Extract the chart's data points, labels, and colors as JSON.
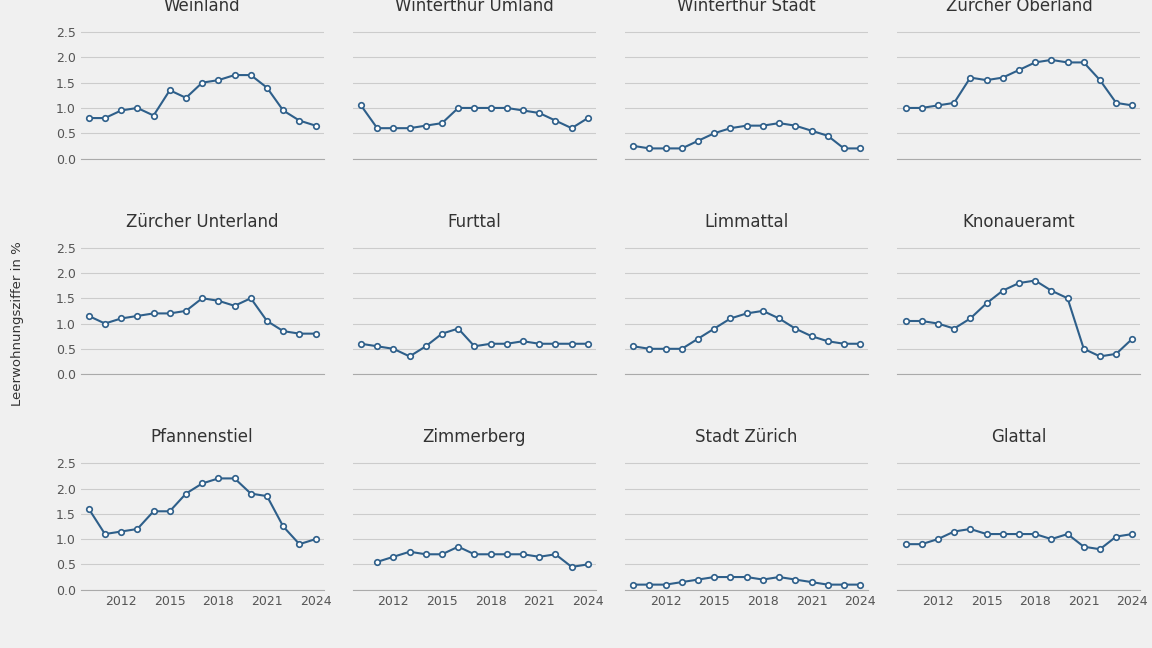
{
  "series": {
    "Weinland": {
      "years": [
        2010,
        2011,
        2012,
        2013,
        2014,
        2015,
        2016,
        2017,
        2018,
        2019,
        2020,
        2021,
        2022,
        2023,
        2024
      ],
      "values": [
        0.8,
        0.8,
        0.95,
        1.0,
        0.85,
        1.35,
        1.2,
        1.5,
        1.55,
        1.65,
        1.65,
        1.4,
        0.95,
        0.75,
        0.65
      ]
    },
    "Winterthur Umland": {
      "years": [
        2010,
        2011,
        2012,
        2013,
        2014,
        2015,
        2016,
        2017,
        2018,
        2019,
        2020,
        2021,
        2022,
        2023,
        2024
      ],
      "values": [
        1.05,
        0.6,
        0.6,
        0.6,
        0.65,
        0.7,
        1.0,
        1.0,
        1.0,
        1.0,
        0.95,
        0.9,
        0.75,
        0.6,
        0.8
      ]
    },
    "Winterthur Stadt": {
      "years": [
        2010,
        2011,
        2012,
        2013,
        2014,
        2015,
        2016,
        2017,
        2018,
        2019,
        2020,
        2021,
        2022,
        2023,
        2024
      ],
      "values": [
        0.25,
        0.2,
        0.2,
        0.2,
        0.35,
        0.5,
        0.6,
        0.65,
        0.65,
        0.7,
        0.65,
        0.55,
        0.45,
        0.2,
        0.2
      ]
    },
    "Zürcher Oberland": {
      "years": [
        2010,
        2011,
        2012,
        2013,
        2014,
        2015,
        2016,
        2017,
        2018,
        2019,
        2020,
        2021,
        2022,
        2023,
        2024
      ],
      "values": [
        1.0,
        1.0,
        1.05,
        1.1,
        1.6,
        1.55,
        1.6,
        1.75,
        1.9,
        1.95,
        1.9,
        1.9,
        1.55,
        1.1,
        1.05
      ]
    },
    "Zürcher Unterland": {
      "years": [
        2010,
        2011,
        2012,
        2013,
        2014,
        2015,
        2016,
        2017,
        2018,
        2019,
        2020,
        2021,
        2022,
        2023,
        2024
      ],
      "values": [
        1.15,
        1.0,
        1.1,
        1.15,
        1.2,
        1.2,
        1.25,
        1.5,
        1.45,
        1.35,
        1.5,
        1.05,
        0.85,
        0.8,
        0.8
      ]
    },
    "Furttal": {
      "years": [
        2010,
        2011,
        2012,
        2013,
        2014,
        2015,
        2016,
        2017,
        2018,
        2019,
        2020,
        2021,
        2022,
        2023,
        2024
      ],
      "values": [
        0.6,
        0.55,
        0.5,
        0.35,
        0.55,
        0.8,
        0.9,
        0.55,
        0.6,
        0.6,
        0.65,
        0.6,
        0.6,
        0.6,
        0.6
      ]
    },
    "Limmattal": {
      "years": [
        2010,
        2011,
        2012,
        2013,
        2014,
        2015,
        2016,
        2017,
        2018,
        2019,
        2020,
        2021,
        2022,
        2023,
        2024
      ],
      "values": [
        0.55,
        0.5,
        0.5,
        0.5,
        0.7,
        0.9,
        1.1,
        1.2,
        1.25,
        1.1,
        0.9,
        0.75,
        0.65,
        0.6,
        0.6
      ]
    },
    "Knonaueramt": {
      "years": [
        2010,
        2011,
        2012,
        2013,
        2014,
        2015,
        2016,
        2017,
        2018,
        2019,
        2020,
        2021,
        2022,
        2023,
        2024
      ],
      "values": [
        1.05,
        1.05,
        1.0,
        0.9,
        1.1,
        1.4,
        1.65,
        1.8,
        1.85,
        1.65,
        1.5,
        0.5,
        0.35,
        0.4,
        0.7
      ]
    },
    "Pfannenstiel": {
      "years": [
        2010,
        2011,
        2012,
        2013,
        2014,
        2015,
        2016,
        2017,
        2018,
        2019,
        2020,
        2021,
        2022,
        2023,
        2024
      ],
      "values": [
        1.6,
        1.1,
        1.15,
        1.2,
        1.55,
        1.55,
        1.9,
        2.1,
        2.2,
        2.2,
        1.9,
        1.85,
        1.25,
        0.9,
        1.0
      ]
    },
    "Zimmerberg": {
      "years": [
        2011,
        2012,
        2013,
        2014,
        2015,
        2016,
        2017,
        2018,
        2019,
        2020,
        2021,
        2022,
        2023,
        2024
      ],
      "values": [
        0.55,
        0.65,
        0.75,
        0.7,
        0.7,
        0.85,
        0.7,
        0.7,
        0.7,
        0.7,
        0.65,
        0.7,
        0.45,
        0.5
      ]
    },
    "Stadt Zürich": {
      "years": [
        2010,
        2011,
        2012,
        2013,
        2014,
        2015,
        2016,
        2017,
        2018,
        2019,
        2020,
        2021,
        2022,
        2023,
        2024
      ],
      "values": [
        0.1,
        0.1,
        0.1,
        0.15,
        0.2,
        0.25,
        0.25,
        0.25,
        0.2,
        0.25,
        0.2,
        0.15,
        0.1,
        0.1,
        0.1
      ]
    },
    "Glattal": {
      "years": [
        2010,
        2011,
        2012,
        2013,
        2014,
        2015,
        2016,
        2017,
        2018,
        2019,
        2020,
        2021,
        2022,
        2023,
        2024
      ],
      "values": [
        0.9,
        0.9,
        1.0,
        1.15,
        1.2,
        1.1,
        1.1,
        1.1,
        1.1,
        1.0,
        1.1,
        0.85,
        0.8,
        1.05,
        1.1
      ]
    }
  },
  "order": [
    "Weinland",
    "Winterthur Umland",
    "Winterthur Stadt",
    "Zürcher Oberland",
    "Zürcher Unterland",
    "Furttal",
    "Limmattal",
    "Knonaueramt",
    "Pfannenstiel",
    "Zimmerberg",
    "Stadt Zürich",
    "Glattal"
  ],
  "line_color": "#2e5f8a",
  "marker_style": "o",
  "marker_size": 4,
  "marker_facecolor": "white",
  "marker_edgewidth": 1.2,
  "ylim": [
    0.0,
    2.75
  ],
  "yticks": [
    0.0,
    0.5,
    1.0,
    1.5,
    2.0,
    2.5
  ],
  "xticks": [
    2012,
    2015,
    2018,
    2021,
    2024
  ],
  "ylabel": "Leerwohnungsziffer in %",
  "background_color": "#f0f0f0",
  "grid_color": "#cccccc",
  "title_fontsize": 12,
  "label_fontsize": 9.5,
  "tick_fontsize": 9
}
